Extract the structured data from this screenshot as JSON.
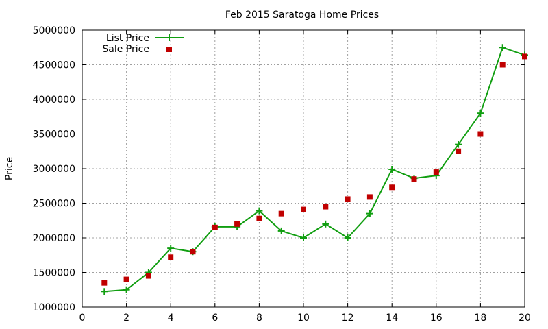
{
  "chart_data": {
    "type": "line",
    "title": "Feb 2015 Saratoga Home Prices",
    "xlabel": "",
    "ylabel": "Price",
    "xlim": [
      0,
      20
    ],
    "ylim": [
      1000000,
      5000000
    ],
    "x_ticks": [
      0,
      2,
      4,
      6,
      8,
      10,
      12,
      14,
      16,
      18,
      20
    ],
    "y_ticks": [
      1000000,
      1500000,
      2000000,
      2500000,
      3000000,
      3500000,
      4000000,
      4500000,
      5000000
    ],
    "grid": true,
    "legend_position": "top-left",
    "series": [
      {
        "name": "List Price",
        "style": "line+cross",
        "color": "#109e10",
        "x": [
          1,
          2,
          3,
          4,
          5,
          6,
          7,
          8,
          9,
          10,
          11,
          12,
          13,
          14,
          15,
          16,
          17,
          18,
          19,
          20
        ],
        "y": [
          1225000,
          1250000,
          1500000,
          1850000,
          1800000,
          2160000,
          2160000,
          2390000,
          2100000,
          2000000,
          2200000,
          2000000,
          2350000,
          2990000,
          2860000,
          2900000,
          3350000,
          3800000,
          4750000,
          4640000
        ]
      },
      {
        "name": "Sale Price",
        "style": "square-marker",
        "color": "#c00000",
        "x": [
          1,
          2,
          3,
          4,
          5,
          6,
          7,
          8,
          9,
          10,
          11,
          12,
          13,
          14,
          15,
          16,
          17,
          18,
          19,
          20
        ],
        "y": [
          1350000,
          1400000,
          1450000,
          1720000,
          1800000,
          2150000,
          2200000,
          2280000,
          2350000,
          2410000,
          2450000,
          2560000,
          2590000,
          2730000,
          2850000,
          2950000,
          3250000,
          3500000,
          4500000,
          4620000
        ]
      }
    ]
  }
}
